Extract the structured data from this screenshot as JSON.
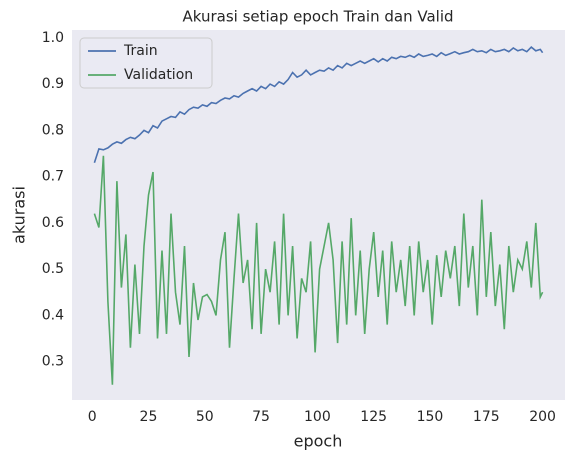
{
  "chart_data": {
    "type": "line",
    "title": "Akurasi setiap epoch Train dan Valid",
    "x_label": "epoch",
    "y_label": "akurasi",
    "x": [
      1,
      3,
      5,
      7,
      9,
      11,
      13,
      15,
      17,
      19,
      21,
      23,
      25,
      27,
      29,
      31,
      33,
      35,
      37,
      39,
      41,
      43,
      45,
      47,
      49,
      51,
      53,
      55,
      57,
      59,
      61,
      63,
      65,
      67,
      69,
      71,
      73,
      75,
      77,
      79,
      81,
      83,
      85,
      87,
      89,
      91,
      93,
      95,
      97,
      99,
      101,
      103,
      105,
      107,
      109,
      111,
      113,
      115,
      117,
      119,
      121,
      123,
      125,
      127,
      129,
      131,
      133,
      135,
      137,
      139,
      141,
      143,
      145,
      147,
      149,
      151,
      153,
      155,
      157,
      159,
      161,
      163,
      165,
      167,
      169,
      171,
      173,
      175,
      177,
      179,
      181,
      183,
      185,
      187,
      189,
      191,
      193,
      195,
      197,
      199,
      200
    ],
    "series": [
      {
        "name": "Train",
        "color": "#4c72b0",
        "values": [
          0.73,
          0.76,
          0.758,
          0.762,
          0.77,
          0.775,
          0.772,
          0.78,
          0.785,
          0.782,
          0.79,
          0.8,
          0.795,
          0.81,
          0.805,
          0.82,
          0.825,
          0.83,
          0.828,
          0.84,
          0.835,
          0.845,
          0.85,
          0.848,
          0.855,
          0.852,
          0.86,
          0.858,
          0.865,
          0.87,
          0.868,
          0.875,
          0.872,
          0.88,
          0.885,
          0.89,
          0.885,
          0.895,
          0.89,
          0.9,
          0.895,
          0.905,
          0.9,
          0.91,
          0.925,
          0.915,
          0.92,
          0.93,
          0.92,
          0.925,
          0.93,
          0.928,
          0.935,
          0.93,
          0.94,
          0.935,
          0.945,
          0.94,
          0.945,
          0.95,
          0.945,
          0.95,
          0.955,
          0.948,
          0.955,
          0.95,
          0.958,
          0.955,
          0.96,
          0.958,
          0.962,
          0.958,
          0.965,
          0.96,
          0.962,
          0.965,
          0.96,
          0.968,
          0.962,
          0.966,
          0.97,
          0.965,
          0.968,
          0.97,
          0.975,
          0.97,
          0.972,
          0.968,
          0.975,
          0.97,
          0.972,
          0.975,
          0.97,
          0.978,
          0.972,
          0.975,
          0.97,
          0.98,
          0.972,
          0.975,
          0.968
        ]
      },
      {
        "name": "Validation",
        "color": "#55a868",
        "values": [
          0.62,
          0.59,
          0.745,
          0.43,
          0.25,
          0.69,
          0.46,
          0.575,
          0.33,
          0.51,
          0.36,
          0.55,
          0.66,
          0.71,
          0.35,
          0.54,
          0.36,
          0.62,
          0.45,
          0.38,
          0.55,
          0.31,
          0.47,
          0.39,
          0.44,
          0.445,
          0.43,
          0.4,
          0.52,
          0.58,
          0.33,
          0.48,
          0.62,
          0.47,
          0.52,
          0.37,
          0.6,
          0.36,
          0.5,
          0.45,
          0.56,
          0.38,
          0.62,
          0.4,
          0.55,
          0.35,
          0.48,
          0.45,
          0.56,
          0.32,
          0.5,
          0.55,
          0.6,
          0.52,
          0.34,
          0.56,
          0.38,
          0.61,
          0.4,
          0.54,
          0.36,
          0.5,
          0.58,
          0.44,
          0.54,
          0.38,
          0.56,
          0.45,
          0.52,
          0.42,
          0.55,
          0.4,
          0.56,
          0.45,
          0.52,
          0.38,
          0.53,
          0.44,
          0.54,
          0.48,
          0.55,
          0.42,
          0.62,
          0.46,
          0.55,
          0.4,
          0.65,
          0.44,
          0.58,
          0.42,
          0.51,
          0.37,
          0.55,
          0.45,
          0.52,
          0.5,
          0.56,
          0.46,
          0.6,
          0.44,
          0.45
        ]
      }
    ],
    "xlim": [
      -8.95,
      209.95
    ],
    "ylim": [
      0.217,
      1.017
    ],
    "xticks": [
      0,
      25,
      50,
      75,
      100,
      125,
      150,
      175,
      200
    ],
    "yticks": [
      0.3,
      0.4,
      0.5,
      0.6,
      0.7,
      0.8,
      0.9,
      {
        "value": 1,
        "label": "1.0"
      }
    ],
    "grid": false,
    "legend": "upper left"
  }
}
